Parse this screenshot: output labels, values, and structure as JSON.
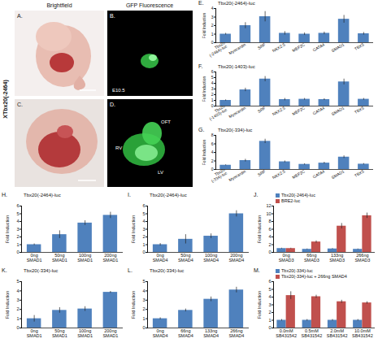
{
  "figure": {
    "side_label": "XTbx20(-2464)",
    "columns": [
      "Brightfield",
      "GFP Fluorescence"
    ],
    "panels": [
      {
        "letter": "A.",
        "labels": []
      },
      {
        "letter": "B.",
        "labels": [
          "E10.5"
        ]
      },
      {
        "letter": "C.",
        "labels": []
      },
      {
        "letter": "D.",
        "labels": [
          "OFT",
          "RV",
          "LV"
        ]
      }
    ]
  },
  "chart_data": [
    {
      "panel": "E.",
      "type": "bar",
      "title": "Tbx20(-2464)-luc",
      "y_label": "Fold Induction",
      "categories": [
        "Tbx20(-2464)-luc",
        "Myocardin",
        "SRF",
        "NKX2.5",
        "MEF2C",
        "GATA4",
        "SMAD1",
        "TBX5"
      ],
      "series": [
        {
          "color": "#4F81BD",
          "values": [
            1,
            2,
            3.05,
            1.1,
            1,
            1.1,
            2.75,
            1.05
          ],
          "errors": [
            0.1,
            0.35,
            0.6,
            0.2,
            0.15,
            0.15,
            0.45,
            0.15
          ]
        }
      ],
      "ylim": [
        0,
        4
      ],
      "yticks": [
        0,
        1,
        2,
        3,
        4
      ]
    },
    {
      "panel": "F.",
      "type": "bar",
      "title": "Tbx20(-1403)-luc",
      "y_label": "Fold Induction",
      "categories": [
        "Tbx20(-1403)-luc",
        "Myocardin",
        "SRF",
        "NKX2.5",
        "MEF2C",
        "GATA4",
        "SMAD1",
        "TBX5"
      ],
      "series": [
        {
          "color": "#4F81BD",
          "values": [
            1,
            2.85,
            4.75,
            1.15,
            1.2,
            1.15,
            4.25,
            1.2
          ],
          "errors": [
            0.1,
            0.3,
            0.45,
            0.2,
            0.15,
            0.15,
            0.5,
            0.15
          ]
        }
      ],
      "ylim": [
        0,
        6
      ],
      "yticks": [
        0,
        1,
        2,
        3,
        4,
        5,
        6
      ]
    },
    {
      "panel": "G.",
      "type": "bar",
      "title": "Tbx20(-334)-luc",
      "y_label": "Fold Induction",
      "categories": [
        "Tbx20(-334)-luc",
        "Myocardin",
        "SRF",
        "NKX2.5",
        "MEF2C",
        "GATA4",
        "SMAD1",
        "TBX5"
      ],
      "series": [
        {
          "color": "#4F81BD",
          "values": [
            1,
            2.1,
            6.6,
            1.8,
            1.2,
            1.5,
            2.9,
            1.25
          ],
          "errors": [
            0.1,
            0.3,
            0.5,
            0.2,
            0.15,
            0.2,
            0.3,
            0.15
          ]
        }
      ],
      "ylim": [
        0,
        8
      ],
      "yticks": [
        0,
        2,
        4,
        6,
        8
      ]
    },
    {
      "panel": "H.",
      "type": "bar",
      "title": "Tbx20(-2464)-luc",
      "y_label": "Fold Induction",
      "categories": [
        "0ng SMAD1",
        "50ng SMAD1",
        "100ng SMAD1",
        "200ng SMAD1"
      ],
      "series": [
        {
          "color": "#4F81BD",
          "values": [
            1,
            2.3,
            3.8,
            4.8
          ],
          "errors": [
            0.1,
            0.5,
            0.3,
            0.4
          ]
        }
      ],
      "ylim": [
        0,
        6
      ],
      "yticks": [
        0,
        1,
        2,
        3,
        4,
        5,
        6
      ]
    },
    {
      "panel": "I.",
      "type": "bar",
      "title": "Tbx20(-2464)-luc",
      "y_label": "Fold Induction",
      "categories": [
        "0ng SMAD4",
        "50ng SMAD4",
        "100ng SMAD4",
        "200ng SMAD4"
      ],
      "series": [
        {
          "color": "#4F81BD",
          "values": [
            1,
            1.7,
            2.1,
            5
          ],
          "errors": [
            0.15,
            0.6,
            0.3,
            0.4
          ]
        }
      ],
      "ylim": [
        0,
        6
      ],
      "yticks": [
        0,
        1,
        2,
        3,
        4,
        5,
        6
      ]
    },
    {
      "panel": "J.",
      "type": "bar",
      "y_label": "Fold Induction",
      "legend": "top",
      "categories": [
        "0ng SMAD3",
        "66ng SMAD3",
        "133ng SMAD3",
        "266ng SMAD3"
      ],
      "series": [
        {
          "name": "Tbx20(-2464)-luc",
          "color": "#4F81BD",
          "values": [
            1,
            0.8,
            0.9,
            0.8
          ],
          "errors": [
            0.1,
            0.1,
            0.1,
            0.1
          ]
        },
        {
          "name": "BRE2-luc",
          "color": "#C0504D",
          "values": [
            1,
            2.7,
            6.8,
            9.5
          ],
          "errors": [
            0.1,
            0.3,
            0.7,
            0.7
          ]
        }
      ],
      "ylim": [
        0,
        12
      ],
      "yticks": [
        0,
        2,
        4,
        6,
        8,
        10,
        12
      ]
    },
    {
      "panel": "K.",
      "type": "bar",
      "title": "Tbx20(-334)-luc",
      "y_label": "Fold Induction",
      "categories": [
        "0ng SMAD1",
        "50ng SMAD1",
        "100ng SMAD1",
        "200ng SMAD1"
      ],
      "series": [
        {
          "color": "#4F81BD",
          "values": [
            1,
            1.9,
            2.05,
            3.85
          ],
          "errors": [
            0.35,
            0.3,
            0.25,
            0.1
          ]
        }
      ],
      "ylim": [
        0,
        5
      ],
      "yticks": [
        0,
        1,
        2,
        3,
        4,
        5
      ]
    },
    {
      "panel": "L.",
      "type": "bar",
      "title": "Tbx20(-334)-luc",
      "y_label": "Fold Induction",
      "categories": [
        "0ng SMAD4",
        "66ng SMAD4",
        "133ng SMAD4",
        "266ng SMAD4"
      ],
      "series": [
        {
          "color": "#4F81BD",
          "values": [
            1,
            1.9,
            3.1,
            4.1
          ],
          "errors": [
            0.1,
            0.15,
            0.25,
            0.3
          ]
        }
      ],
      "ylim": [
        0,
        5
      ],
      "yticks": [
        0,
        1,
        2,
        3,
        4,
        5
      ]
    },
    {
      "panel": "M.",
      "type": "bar",
      "y_label": "Fold Induction",
      "legend": "top",
      "categories": [
        "0.0mM SB431542",
        "0.5mM SB431542",
        "2.0mM SB431542",
        "10.0mM SB431542"
      ],
      "series": [
        {
          "name": "Tbx20(-334)-luc",
          "color": "#4F81BD",
          "values": [
            1,
            1,
            1,
            1
          ],
          "errors": [
            0.1,
            0.1,
            0.1,
            0.1
          ]
        },
        {
          "name": "Tbx20(-334)-luc + 266ng SMAD4",
          "color": "#C0504D",
          "values": [
            4.2,
            4.05,
            3.4,
            3.25
          ],
          "errors": [
            0.5,
            0.2,
            0.2,
            0.15
          ]
        }
      ],
      "ylim": [
        0,
        6
      ],
      "yticks": [
        0,
        1,
        2,
        3,
        4,
        5,
        6
      ]
    }
  ]
}
